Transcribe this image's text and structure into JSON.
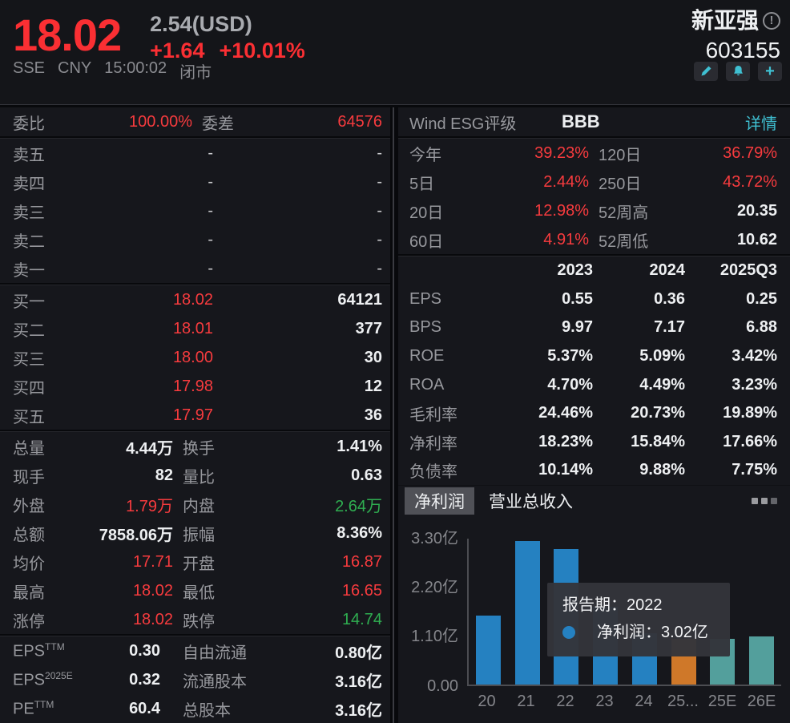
{
  "header": {
    "price": "18.02",
    "usd_price": "2.54(USD)",
    "change": "+1.64",
    "change_pct": "+10.01%",
    "stock_name": "新亚强",
    "info_icon": "circled-exclamation-icon",
    "stock_code": "603155",
    "exchange": "SSE",
    "currency": "CNY",
    "time": "15:00:02",
    "market_status": "闭市",
    "action_icons": [
      "pencil-icon",
      "bell-icon",
      "plus-icon"
    ]
  },
  "order": {
    "weibi_label": "委比",
    "weibi_value": "100.00%",
    "weicha_label": "委差",
    "weicha_value": "64576",
    "asks": [
      {
        "label": "卖五",
        "price": "-",
        "volume": "-"
      },
      {
        "label": "卖四",
        "price": "-",
        "volume": "-"
      },
      {
        "label": "卖三",
        "price": "-",
        "volume": "-"
      },
      {
        "label": "卖二",
        "price": "-",
        "volume": "-"
      },
      {
        "label": "卖一",
        "price": "-",
        "volume": "-"
      }
    ],
    "bids": [
      {
        "label": "买一",
        "price": "18.02",
        "volume": "64121"
      },
      {
        "label": "买二",
        "price": "18.01",
        "volume": "377"
      },
      {
        "label": "买三",
        "price": "18.00",
        "volume": "30"
      },
      {
        "label": "买四",
        "price": "17.98",
        "volume": "12"
      },
      {
        "label": "买五",
        "price": "17.97",
        "volume": "36"
      }
    ],
    "stats": [
      {
        "l1": "总量",
        "v1": "4.44万",
        "c1": "white",
        "l2": "换手",
        "v2": "1.41%",
        "c2": "white"
      },
      {
        "l1": "现手",
        "v1": "82",
        "c1": "white",
        "l2": "量比",
        "v2": "0.63",
        "c2": "white"
      },
      {
        "l1": "外盘",
        "v1": "1.79万",
        "c1": "red",
        "l2": "内盘",
        "v2": "2.64万",
        "c2": "green"
      },
      {
        "l1": "总额",
        "v1": "7858.06万",
        "c1": "white",
        "l2": "振幅",
        "v2": "8.36%",
        "c2": "white"
      },
      {
        "l1": "均价",
        "v1": "17.71",
        "c1": "red",
        "l2": "开盘",
        "v2": "16.87",
        "c2": "red"
      },
      {
        "l1": "最高",
        "v1": "18.02",
        "c1": "red",
        "l2": "最低",
        "v2": "16.65",
        "c2": "red"
      },
      {
        "l1": "涨停",
        "v1": "18.02",
        "c1": "red",
        "l2": "跌停",
        "v2": "14.74",
        "c2": "green"
      }
    ],
    "fundamentals": [
      {
        "label": "EPS",
        "sup": "TTM",
        "value": "0.30",
        "label2": "自由流通",
        "value2": "0.80亿"
      },
      {
        "label": "EPS",
        "sup": "2025E",
        "value": "0.32",
        "label2": "流通股本",
        "value2": "3.16亿"
      },
      {
        "label": "PE",
        "sup": "TTM",
        "value": "60.4",
        "label2": "总股本",
        "value2": "3.16亿"
      }
    ]
  },
  "right_panel": {
    "esg": {
      "label": "Wind ESG评级",
      "rating": "BBB",
      "link": "详情"
    },
    "performance": [
      {
        "l1": "今年",
        "v1": "39.23%",
        "c1": "red",
        "l2": "120日",
        "v2": "36.79%",
        "c2": "red"
      },
      {
        "l1": "5日",
        "v1": "2.44%",
        "c1": "red",
        "l2": "250日",
        "v2": "43.72%",
        "c2": "red"
      },
      {
        "l1": "20日",
        "v1": "12.98%",
        "c1": "red",
        "l2": "52周高",
        "v2": "20.35",
        "c2": "white"
      },
      {
        "l1": "60日",
        "v1": "4.91%",
        "c1": "red",
        "l2": "52周低",
        "v2": "10.62",
        "c2": "white"
      }
    ],
    "financials": {
      "columns": [
        "2023",
        "2024",
        "2025Q3"
      ],
      "rows": [
        {
          "label": "EPS",
          "values": [
            "0.55",
            "0.36",
            "0.25"
          ]
        },
        {
          "label": "BPS",
          "values": [
            "9.97",
            "7.17",
            "6.88"
          ]
        },
        {
          "label": "ROE",
          "values": [
            "5.37%",
            "5.09%",
            "3.42%"
          ]
        },
        {
          "label": "ROA",
          "values": [
            "4.70%",
            "4.49%",
            "3.23%"
          ]
        },
        {
          "label": "毛利率",
          "values": [
            "24.46%",
            "20.73%",
            "19.89%"
          ]
        },
        {
          "label": "净利率",
          "values": [
            "18.23%",
            "15.84%",
            "17.66%"
          ]
        },
        {
          "label": "负债率",
          "values": [
            "10.14%",
            "9.88%",
            "7.75%"
          ]
        }
      ]
    },
    "tabs": [
      {
        "label": "净利润",
        "active": true
      },
      {
        "label": "营业总收入",
        "active": false
      }
    ],
    "dots_menu": "more-options"
  },
  "chart_data": {
    "type": "bar",
    "title": "净利润",
    "unit": "亿",
    "categories": [
      "20",
      "21",
      "22",
      "23",
      "24",
      "25...",
      "25E",
      "26E"
    ],
    "values": [
      1.54,
      3.21,
      3.02,
      1.74,
      1.14,
      1.02,
      1.01,
      1.08
    ],
    "bar_colors": [
      "#2581c1",
      "#2581c1",
      "#2581c1",
      "#2581c1",
      "#2581c1",
      "#cf7829",
      "#539f9c",
      "#539f9c"
    ],
    "ylim": [
      0,
      3.3
    ],
    "yticks": [
      {
        "label": "3.30亿",
        "value": 3.3
      },
      {
        "label": "2.20亿",
        "value": 2.2
      },
      {
        "label": "1.10亿",
        "value": 1.1
      },
      {
        "label": "0.00",
        "value": 0
      }
    ],
    "grid": false,
    "legend_position": "none",
    "tooltip": {
      "period_label": "报告期：",
      "period_value": "2022",
      "series_label": "净利润：",
      "series_value": "3.02亿",
      "marker_color": "#2581c1"
    }
  }
}
